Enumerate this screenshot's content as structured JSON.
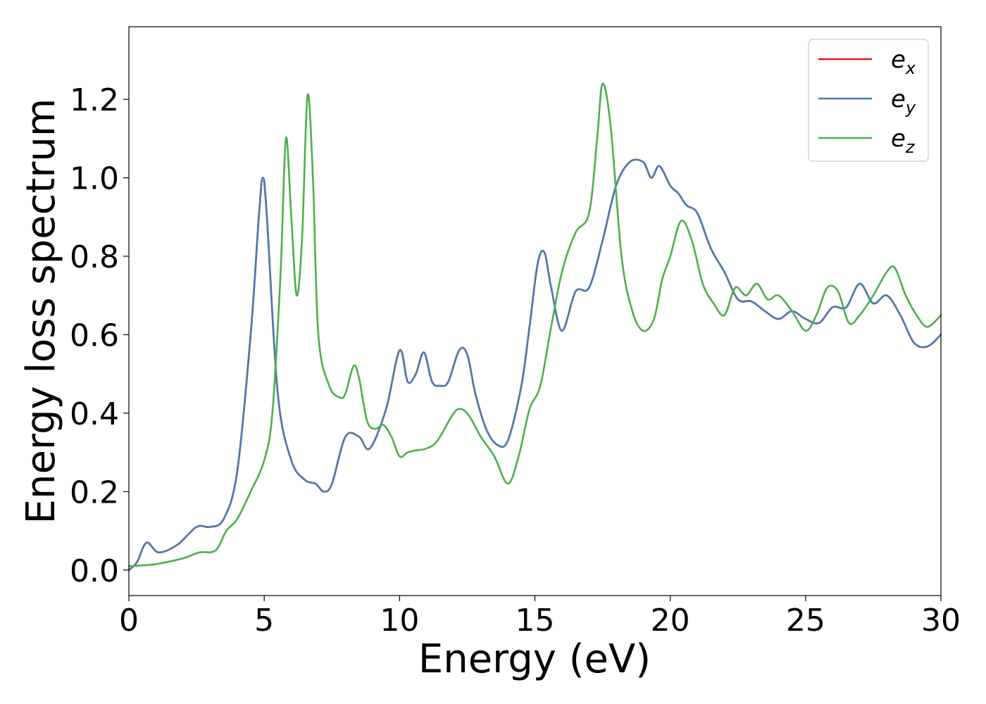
{
  "chart_data": {
    "type": "line",
    "xlabel": "Energy (eV)",
    "ylabel": "Energy loss spectrum",
    "xlim": [
      0,
      30
    ],
    "ylim": [
      -0.065,
      1.385
    ],
    "xticks": [
      0,
      5,
      10,
      15,
      20,
      25,
      30
    ],
    "xtick_labels": [
      "0",
      "5",
      "10",
      "15",
      "20",
      "25",
      "30"
    ],
    "yticks": [
      0.0,
      0.2,
      0.4,
      0.6,
      0.8,
      1.0,
      1.2
    ],
    "ytick_labels": [
      "0.0",
      "0.2",
      "0.4",
      "0.6",
      "0.8",
      "1.0",
      "1.2"
    ],
    "grid": false,
    "legend_position": "top-right",
    "series": [
      {
        "name": "e",
        "subscript": "x",
        "color": "#e41a1c",
        "x": [
          0,
          0.3,
          0.65,
          1.1,
          1.8,
          2.5,
          3.0,
          3.5,
          4.0,
          4.5,
          4.8,
          4.95,
          5.1,
          5.5,
          6.0,
          6.5,
          6.9,
          7.2,
          7.5,
          8.0,
          8.5,
          8.9,
          9.5,
          10.0,
          10.3,
          10.6,
          10.9,
          11.2,
          11.5,
          11.8,
          12.2,
          12.5,
          12.8,
          13.2,
          13.6,
          14.0,
          14.5,
          14.8,
          15.1,
          15.35,
          15.6,
          16.0,
          16.5,
          17.0,
          17.5,
          18.0,
          18.5,
          19.0,
          19.3,
          19.6,
          20.0,
          20.3,
          20.6,
          21.0,
          21.5,
          22.0,
          22.5,
          23.0,
          23.5,
          24.0,
          24.5,
          25.0,
          25.5,
          26.0,
          26.5,
          27.0,
          27.5,
          28.0,
          28.5,
          29.0,
          29.5,
          30.0
        ],
        "y": [
          0.0,
          0.02,
          0.07,
          0.045,
          0.065,
          0.11,
          0.11,
          0.13,
          0.25,
          0.6,
          0.9,
          1.0,
          0.9,
          0.45,
          0.28,
          0.23,
          0.22,
          0.2,
          0.22,
          0.34,
          0.34,
          0.31,
          0.41,
          0.56,
          0.48,
          0.5,
          0.555,
          0.48,
          0.47,
          0.48,
          0.56,
          0.55,
          0.45,
          0.36,
          0.32,
          0.33,
          0.47,
          0.62,
          0.78,
          0.81,
          0.72,
          0.61,
          0.71,
          0.72,
          0.84,
          0.98,
          1.04,
          1.04,
          1.0,
          1.03,
          0.98,
          0.96,
          0.93,
          0.91,
          0.82,
          0.76,
          0.69,
          0.685,
          0.66,
          0.64,
          0.66,
          0.64,
          0.63,
          0.67,
          0.67,
          0.73,
          0.68,
          0.7,
          0.65,
          0.58,
          0.57,
          0.6
        ]
      },
      {
        "name": "e",
        "subscript": "y",
        "color": "#4a7bb0",
        "x": [
          0,
          0.3,
          0.65,
          1.1,
          1.8,
          2.5,
          3.0,
          3.5,
          4.0,
          4.5,
          4.8,
          4.95,
          5.1,
          5.5,
          6.0,
          6.5,
          6.9,
          7.2,
          7.5,
          8.0,
          8.5,
          8.9,
          9.5,
          10.0,
          10.3,
          10.6,
          10.9,
          11.2,
          11.5,
          11.8,
          12.2,
          12.5,
          12.8,
          13.2,
          13.6,
          14.0,
          14.5,
          14.8,
          15.1,
          15.35,
          15.6,
          16.0,
          16.5,
          17.0,
          17.5,
          18.0,
          18.5,
          19.0,
          19.3,
          19.6,
          20.0,
          20.3,
          20.6,
          21.0,
          21.5,
          22.0,
          22.5,
          23.0,
          23.5,
          24.0,
          24.5,
          25.0,
          25.5,
          26.0,
          26.5,
          27.0,
          27.5,
          28.0,
          28.5,
          29.0,
          29.5,
          30.0
        ],
        "y": [
          0.0,
          0.02,
          0.07,
          0.045,
          0.065,
          0.11,
          0.11,
          0.13,
          0.25,
          0.6,
          0.9,
          1.0,
          0.9,
          0.45,
          0.28,
          0.23,
          0.22,
          0.2,
          0.22,
          0.34,
          0.34,
          0.31,
          0.41,
          0.56,
          0.48,
          0.5,
          0.555,
          0.48,
          0.47,
          0.48,
          0.56,
          0.55,
          0.45,
          0.36,
          0.32,
          0.33,
          0.47,
          0.62,
          0.78,
          0.81,
          0.72,
          0.61,
          0.71,
          0.72,
          0.84,
          0.98,
          1.04,
          1.04,
          1.0,
          1.03,
          0.98,
          0.96,
          0.93,
          0.91,
          0.82,
          0.76,
          0.69,
          0.685,
          0.66,
          0.64,
          0.66,
          0.64,
          0.63,
          0.67,
          0.67,
          0.73,
          0.68,
          0.7,
          0.65,
          0.58,
          0.57,
          0.6
        ]
      },
      {
        "name": "e",
        "subscript": "z",
        "color": "#4daf4a",
        "x": [
          0,
          0.5,
          1.0,
          2.0,
          2.6,
          3.2,
          3.6,
          4.0,
          4.5,
          5.0,
          5.3,
          5.6,
          5.8,
          6.0,
          6.2,
          6.4,
          6.6,
          6.8,
          7.0,
          7.4,
          7.8,
          8.0,
          8.3,
          8.5,
          8.8,
          9.1,
          9.4,
          9.7,
          10.0,
          10.3,
          10.6,
          11.0,
          11.4,
          12.0,
          12.3,
          12.6,
          13.0,
          13.5,
          14.0,
          14.4,
          14.8,
          15.2,
          15.6,
          16.0,
          16.5,
          17.0,
          17.3,
          17.5,
          17.8,
          18.2,
          18.6,
          19.0,
          19.4,
          19.7,
          20.0,
          20.4,
          20.8,
          21.2,
          21.6,
          22.0,
          22.4,
          22.8,
          23.2,
          23.6,
          24.0,
          24.5,
          25.0,
          25.4,
          25.8,
          26.2,
          26.6,
          27.0,
          27.5,
          28.0,
          28.3,
          28.7,
          29.1,
          29.5,
          30.0
        ],
        "y": [
          0.01,
          0.012,
          0.015,
          0.03,
          0.045,
          0.05,
          0.1,
          0.13,
          0.2,
          0.28,
          0.4,
          0.75,
          1.1,
          0.9,
          0.7,
          0.85,
          1.21,
          1.0,
          0.6,
          0.47,
          0.44,
          0.45,
          0.52,
          0.49,
          0.38,
          0.36,
          0.37,
          0.34,
          0.29,
          0.3,
          0.305,
          0.31,
          0.33,
          0.4,
          0.41,
          0.39,
          0.34,
          0.29,
          0.22,
          0.29,
          0.41,
          0.47,
          0.62,
          0.76,
          0.86,
          0.91,
          1.1,
          1.24,
          1.13,
          0.8,
          0.66,
          0.61,
          0.64,
          0.74,
          0.8,
          0.89,
          0.84,
          0.73,
          0.68,
          0.65,
          0.72,
          0.7,
          0.73,
          0.69,
          0.7,
          0.66,
          0.61,
          0.65,
          0.72,
          0.71,
          0.63,
          0.65,
          0.7,
          0.76,
          0.77,
          0.7,
          0.65,
          0.62,
          0.65
        ]
      }
    ]
  }
}
